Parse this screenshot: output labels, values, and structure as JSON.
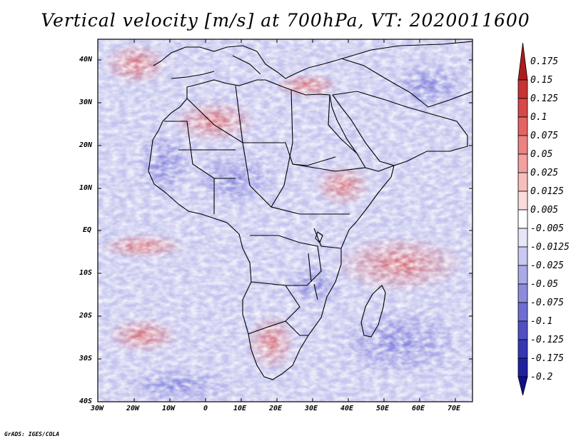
{
  "title": "Vertical velocity [m/s] at 700hPa, VT: 2020011600",
  "credit": "GrADS: IGES/COLA",
  "map": {
    "lat_labels": [
      "40N",
      "30N",
      "20N",
      "10N",
      "EQ",
      "10S",
      "20S",
      "30S",
      "40S"
    ],
    "lon_labels": [
      "30W",
      "20W",
      "10W",
      "0",
      "10E",
      "20E",
      "30E",
      "40E",
      "50E",
      "60E",
      "70E"
    ],
    "lat_range": [
      -40,
      45
    ],
    "lon_range": [
      -30,
      75
    ]
  },
  "colorbar": {
    "labels": [
      "0.175",
      "0.15",
      "0.125",
      "0.1",
      "0.075",
      "0.05",
      "0.025",
      "0.0125",
      "0.005",
      "-0.005",
      "-0.0125",
      "-0.025",
      "-0.05",
      "-0.075",
      "-0.1",
      "-0.125",
      "-0.175",
      "-0.2"
    ],
    "colors": [
      "#b01c1c",
      "#c83232",
      "#d84848",
      "#e46464",
      "#ec8282",
      "#f2a0a0",
      "#f7bebe",
      "#fbdcdc",
      "#ffffff",
      "#e6e6f8",
      "#c8c8f0",
      "#aaaae6",
      "#8c8cdc",
      "#6e6ed2",
      "#5050c4",
      "#3636b4",
      "#2020a0",
      "#10108c"
    ]
  }
}
